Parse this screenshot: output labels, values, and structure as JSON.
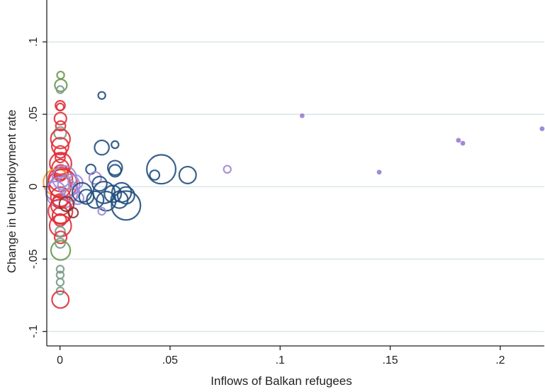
{
  "chart_data": {
    "type": "scatter",
    "xlabel": "Inflows of Balkan refugees",
    "ylabel": "Change in Unemployment rate",
    "xlim": [
      -0.006,
      0.22
    ],
    "ylim": [
      -0.11,
      0.125
    ],
    "x_ticks": [
      0,
      0.05,
      0.1,
      0.15,
      0.2
    ],
    "x_tick_labels": [
      "0",
      ".05",
      ".1",
      ".15",
      ".2"
    ],
    "y_ticks": [
      -0.1,
      -0.05,
      0,
      0.05,
      0.1
    ],
    "y_tick_labels": [
      "-.1",
      "-.05",
      "0",
      ".05",
      ".1"
    ],
    "grid": "horizontal",
    "legend": "none",
    "colors": {
      "green": "#6a9a52",
      "red": "#e0303a",
      "orange": "#f0a03a",
      "gray_green": "#7a9a8a",
      "purple": "#a08ad8",
      "navy": "#24507e",
      "dark_red": "#8a3030",
      "grid": "#d8e6ea",
      "axis": "#222222"
    },
    "points": [
      {
        "x": 0.0003,
        "y": 0.077,
        "size": 3,
        "color": "green"
      },
      {
        "x": 0.0004,
        "y": 0.07,
        "size": 5,
        "color": "green"
      },
      {
        "x": 0.0001,
        "y": 0.067,
        "size": 3,
        "color": "gray_green"
      },
      {
        "x": 0.0001,
        "y": 0.056,
        "size": 4,
        "color": "red"
      },
      {
        "x": 0.0001,
        "y": 0.055,
        "size": 3,
        "color": "red"
      },
      {
        "x": 0.0002,
        "y": 0.047,
        "size": 5,
        "color": "red"
      },
      {
        "x": 0.0003,
        "y": 0.042,
        "size": 4,
        "color": "red"
      },
      {
        "x": 0.0001,
        "y": 0.037,
        "size": 5,
        "color": "gray_green"
      },
      {
        "x": 0.0002,
        "y": 0.033,
        "size": 8,
        "color": "red"
      },
      {
        "x": 0.0001,
        "y": 0.028,
        "size": 7,
        "color": "red"
      },
      {
        "x": 0.0002,
        "y": 0.024,
        "size": 5,
        "color": "red"
      },
      {
        "x": 0.0001,
        "y": 0.02,
        "size": 4,
        "color": "red"
      },
      {
        "x": 0.0003,
        "y": 0.016,
        "size": 9,
        "color": "red"
      },
      {
        "x": 0.0002,
        "y": 0.013,
        "size": 7,
        "color": "red"
      },
      {
        "x": 0.0004,
        "y": 0.01,
        "size": 6,
        "color": "red"
      },
      {
        "x": 0.0001,
        "y": 0.008,
        "size": 5,
        "color": "red"
      },
      {
        "x": 0.0002,
        "y": 0.005,
        "size": 10,
        "color": "red"
      },
      {
        "x": -0.0015,
        "y": 0.003,
        "size": 11,
        "color": "orange"
      },
      {
        "x": 0.0012,
        "y": 0.002,
        "size": 12,
        "color": "red"
      },
      {
        "x": 0.0001,
        "y": 0.0,
        "size": 9,
        "color": "red"
      },
      {
        "x": -0.002,
        "y": -0.003,
        "size": 8,
        "color": "purple"
      },
      {
        "x": 0.0008,
        "y": -0.004,
        "size": 13,
        "color": "purple"
      },
      {
        "x": 0.0002,
        "y": -0.007,
        "size": 8,
        "color": "red"
      },
      {
        "x": 0.0001,
        "y": -0.01,
        "size": 6,
        "color": "red"
      },
      {
        "x": 0.0003,
        "y": -0.013,
        "size": 8,
        "color": "red"
      },
      {
        "x": 0.0002,
        "y": -0.017,
        "size": 10,
        "color": "red"
      },
      {
        "x": 0.0004,
        "y": -0.02,
        "size": 7,
        "color": "red"
      },
      {
        "x": 0.0001,
        "y": -0.023,
        "size": 5,
        "color": "red"
      },
      {
        "x": 0.0002,
        "y": -0.027,
        "size": 9,
        "color": "red"
      },
      {
        "x": 0.0001,
        "y": -0.031,
        "size": 4,
        "color": "gray_green"
      },
      {
        "x": 0.0003,
        "y": -0.035,
        "size": 5,
        "color": "red"
      },
      {
        "x": 0.0001,
        "y": -0.039,
        "size": 4,
        "color": "gray_green"
      },
      {
        "x": 0.0003,
        "y": -0.044,
        "size": 8,
        "color": "green"
      },
      {
        "x": 0.0001,
        "y": -0.057,
        "size": 3,
        "color": "gray_green"
      },
      {
        "x": 0.0001,
        "y": -0.061,
        "size": 3,
        "color": "gray_green"
      },
      {
        "x": 0.0001,
        "y": -0.066,
        "size": 3,
        "color": "gray_green"
      },
      {
        "x": 0.0001,
        "y": -0.072,
        "size": 3,
        "color": "gray_green"
      },
      {
        "x": 0.0002,
        "y": -0.078,
        "size": 7,
        "color": "red"
      },
      {
        "x": 0.002,
        "y": 0.006,
        "size": 10,
        "color": "purple"
      },
      {
        "x": 0.004,
        "y": 0.001,
        "size": 9,
        "color": "purple"
      },
      {
        "x": 0.005,
        "y": -0.004,
        "size": 7,
        "color": "purple"
      },
      {
        "x": 0.007,
        "y": 0.003,
        "size": 6,
        "color": "purple"
      },
      {
        "x": 0.008,
        "y": -0.008,
        "size": 5,
        "color": "purple"
      },
      {
        "x": 0.003,
        "y": -0.012,
        "size": 6,
        "color": "dark_red"
      },
      {
        "x": 0.006,
        "y": -0.018,
        "size": 4,
        "color": "dark_red"
      },
      {
        "x": 0.01,
        "y": -0.004,
        "size": 8,
        "color": "navy"
      },
      {
        "x": 0.012,
        "y": -0.007,
        "size": 6,
        "color": "navy"
      },
      {
        "x": 0.014,
        "y": 0.012,
        "size": 4,
        "color": "navy"
      },
      {
        "x": 0.016,
        "y": 0.006,
        "size": 5,
        "color": "purple"
      },
      {
        "x": 0.016,
        "y": -0.009,
        "size": 7,
        "color": "navy"
      },
      {
        "x": 0.018,
        "y": 0.002,
        "size": 6,
        "color": "navy"
      },
      {
        "x": 0.019,
        "y": 0.063,
        "size": 3,
        "color": "navy"
      },
      {
        "x": 0.019,
        "y": 0.027,
        "size": 6,
        "color": "navy"
      },
      {
        "x": 0.02,
        "y": -0.004,
        "size": 9,
        "color": "navy"
      },
      {
        "x": 0.021,
        "y": -0.01,
        "size": 8,
        "color": "navy"
      },
      {
        "x": 0.019,
        "y": -0.017,
        "size": 3,
        "color": "purple"
      },
      {
        "x": 0.024,
        "y": -0.005,
        "size": 7,
        "color": "navy"
      },
      {
        "x": 0.025,
        "y": 0.011,
        "size": 5,
        "color": "navy"
      },
      {
        "x": 0.025,
        "y": 0.013,
        "size": 6,
        "color": "navy"
      },
      {
        "x": 0.025,
        "y": 0.029,
        "size": 3,
        "color": "navy"
      },
      {
        "x": 0.027,
        "y": -0.009,
        "size": 7,
        "color": "navy"
      },
      {
        "x": 0.028,
        "y": -0.004,
        "size": 8,
        "color": "navy"
      },
      {
        "x": 0.03,
        "y": -0.006,
        "size": 7,
        "color": "navy"
      },
      {
        "x": 0.03,
        "y": -0.013,
        "size": 12,
        "color": "navy"
      },
      {
        "x": 0.043,
        "y": 0.008,
        "size": 4,
        "color": "navy"
      },
      {
        "x": 0.046,
        "y": 0.012,
        "size": 12,
        "color": "navy"
      },
      {
        "x": 0.058,
        "y": 0.008,
        "size": 7,
        "color": "navy"
      },
      {
        "x": 0.076,
        "y": 0.012,
        "size": 3,
        "color": "purple"
      },
      {
        "x": 0.11,
        "y": 0.049,
        "size": 2,
        "color": "purple",
        "filled": true
      },
      {
        "x": 0.145,
        "y": 0.01,
        "size": 2,
        "color": "purple",
        "filled": true
      },
      {
        "x": 0.181,
        "y": 0.032,
        "size": 2,
        "color": "purple",
        "filled": true
      },
      {
        "x": 0.183,
        "y": 0.03,
        "size": 2,
        "color": "purple",
        "filled": true
      },
      {
        "x": 0.219,
        "y": 0.04,
        "size": 2,
        "color": "purple",
        "filled": true
      }
    ]
  }
}
